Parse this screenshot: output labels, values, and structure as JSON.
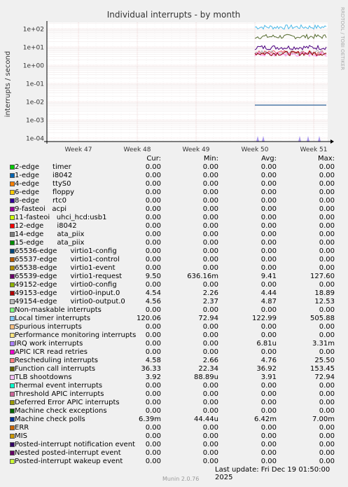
{
  "chart_data": {
    "type": "line",
    "title": "Individual interrupts - by month",
    "ylabel": "interrupts / second",
    "y_scale": "log",
    "ylim": [
      0.0001,
      200
    ],
    "y_ticks": [
      "1e+02",
      "1e+01",
      "1e+00",
      "1e-01",
      "1e-02",
      "1e-03",
      "1e-04"
    ],
    "x_ticks": [
      "Week 47",
      "Week 48",
      "Week 49",
      "Week 50",
      "Week 51"
    ],
    "side_label": "RRDTOOL / TOBI OETIKER",
    "grid": true,
    "series": [
      {
        "name": "Local timer interrupts",
        "color": "#4ab8e8",
        "value": 122.99
      },
      {
        "name": "Function call interrupts",
        "color": "#556b2f",
        "value": 36.92
      },
      {
        "name": "virtio1-request",
        "color": "#4b0082",
        "value": 9.41
      },
      {
        "name": "Rescheduling interrupts",
        "color": "#ee5566",
        "value": 4.76
      },
      {
        "name": "virtio0-output.0",
        "color": "#b0b0b0",
        "value": 4.87
      },
      {
        "name": "TLB shootdowns",
        "color": "#ff88ee",
        "value": 3.91
      },
      {
        "name": "virtio0-input.0",
        "color": "#8b0000",
        "value": 4.44
      },
      {
        "name": "Machine check polls",
        "color": "#00468b",
        "value": 0.00642
      }
    ]
  },
  "legend": {
    "headers": {
      "cur": "Cur:",
      "min": "Min:",
      "avg": "Avg:",
      "max": "Max:"
    },
    "rows": [
      {
        "label": "2-edge      timer",
        "color": "#00cc00",
        "cur": "0.00",
        "min": "0.00",
        "avg": "0.00",
        "max": "0.00"
      },
      {
        "label": "1-edge      i8042",
        "color": "#0066b3",
        "cur": "0.00",
        "min": "0.00",
        "avg": "0.00",
        "max": "0.00"
      },
      {
        "label": "4-edge      ttyS0",
        "color": "#ff8000",
        "cur": "0.00",
        "min": "0.00",
        "avg": "0.00",
        "max": "0.00"
      },
      {
        "label": "6-edge      floppy",
        "color": "#ffcc00",
        "cur": "0.00",
        "min": "0.00",
        "avg": "0.00",
        "max": "0.00"
      },
      {
        "label": "8-edge      rtc0",
        "color": "#330099",
        "cur": "0.00",
        "min": "0.00",
        "avg": "0.00",
        "max": "0.00"
      },
      {
        "label": "9-fasteoi   acpi",
        "color": "#990099",
        "cur": "0.00",
        "min": "0.00",
        "avg": "0.00",
        "max": "0.00"
      },
      {
        "label": "11-fasteoi   uhci_hcd:usb1",
        "color": "#ccff00",
        "cur": "0.00",
        "min": "0.00",
        "avg": "0.00",
        "max": "0.00"
      },
      {
        "label": "12-edge      i8042",
        "color": "#ff0000",
        "cur": "0.00",
        "min": "0.00",
        "avg": "0.00",
        "max": "0.00"
      },
      {
        "label": "14-edge      ata_piix",
        "color": "#808080",
        "cur": "0.00",
        "min": "0.00",
        "avg": "0.00",
        "max": "0.00"
      },
      {
        "label": "15-edge      ata_piix",
        "color": "#008f00",
        "cur": "0.00",
        "min": "0.00",
        "avg": "0.00",
        "max": "0.00"
      },
      {
        "label": "65536-edge      virtio1-config",
        "color": "#00487d",
        "cur": "0.00",
        "min": "0.00",
        "avg": "0.00",
        "max": "0.00"
      },
      {
        "label": "65537-edge      virtio1-control",
        "color": "#b35a00",
        "cur": "0.00",
        "min": "0.00",
        "avg": "0.00",
        "max": "0.00"
      },
      {
        "label": "65538-edge      virtio1-event",
        "color": "#b38f00",
        "cur": "0.00",
        "min": "0.00",
        "avg": "0.00",
        "max": "0.00"
      },
      {
        "label": "65539-edge      virtio1-request",
        "color": "#6b006b",
        "cur": "9.50",
        "min": "636.16m",
        "avg": "9.41",
        "max": "127.60"
      },
      {
        "label": "49152-edge      virtio0-config",
        "color": "#8fb300",
        "cur": "0.00",
        "min": "0.00",
        "avg": "0.00",
        "max": "0.00"
      },
      {
        "label": "49153-edge      virtio0-input.0",
        "color": "#b30000",
        "cur": "4.54",
        "min": "2.26",
        "avg": "4.44",
        "max": "18.89"
      },
      {
        "label": "49154-edge      virtio0-output.0",
        "color": "#bebebe",
        "cur": "4.56",
        "min": "2.37",
        "avg": "4.87",
        "max": "12.53"
      },
      {
        "label": "Non-maskable interrupts",
        "color": "#80ff80",
        "cur": "0.00",
        "min": "0.00",
        "avg": "0.00",
        "max": "0.00"
      },
      {
        "label": "Local timer interrupts",
        "color": "#80c9ff",
        "cur": "120.06",
        "min": "72.94",
        "avg": "122.99",
        "max": "505.88"
      },
      {
        "label": "Spurious interrupts",
        "color": "#ffc080",
        "cur": "0.00",
        "min": "0.00",
        "avg": "0.00",
        "max": "0.00"
      },
      {
        "label": "Performance monitoring interrupts",
        "color": "#ffe680",
        "cur": "0.00",
        "min": "0.00",
        "avg": "0.00",
        "max": "0.00"
      },
      {
        "label": "IRQ work interrupts",
        "color": "#aa80ff",
        "cur": "0.00",
        "min": "0.00",
        "avg": "6.81u",
        "max": "3.31m"
      },
      {
        "label": "APIC ICR read retries",
        "color": "#ee00cc",
        "cur": "0.00",
        "min": "0.00",
        "avg": "0.00",
        "max": "0.00"
      },
      {
        "label": "Rescheduling interrupts",
        "color": "#ff8080",
        "cur": "4.58",
        "min": "2.66",
        "avg": "4.76",
        "max": "25.50"
      },
      {
        "label": "Function call interrupts",
        "color": "#666600",
        "cur": "36.33",
        "min": "22.34",
        "avg": "36.92",
        "max": "153.45"
      },
      {
        "label": "TLB shootdowns",
        "color": "#ffbfff",
        "cur": "3.92",
        "min": "88.89u",
        "avg": "3.91",
        "max": "72.94"
      },
      {
        "label": "Thermal event interrupts",
        "color": "#00ffcc",
        "cur": "0.00",
        "min": "0.00",
        "avg": "0.00",
        "max": "0.00"
      },
      {
        "label": "Threshold APIC interrupts",
        "color": "#cc6699",
        "cur": "0.00",
        "min": "0.00",
        "avg": "0.00",
        "max": "0.00"
      },
      {
        "label": "Deferred Error APIC interrupts",
        "color": "#999900",
        "cur": "0.00",
        "min": "0.00",
        "avg": "0.00",
        "max": "0.00"
      },
      {
        "label": "Machine check exceptions",
        "color": "#006600",
        "cur": "0.00",
        "min": "0.00",
        "avg": "0.00",
        "max": "0.00"
      },
      {
        "label": "Machine check polls",
        "color": "#003399",
        "cur": "6.39m",
        "min": "44.44u",
        "avg": "6.42m",
        "max": "7.00m"
      },
      {
        "label": "ERR",
        "color": "#cc6600",
        "cur": "0.00",
        "min": "0.00",
        "avg": "0.00",
        "max": "0.00"
      },
      {
        "label": "MIS",
        "color": "#cc9900",
        "cur": "0.00",
        "min": "0.00",
        "avg": "0.00",
        "max": "0.00"
      },
      {
        "label": "Posted-interrupt notification event",
        "color": "#330066",
        "cur": "0.00",
        "min": "0.00",
        "avg": "0.00",
        "max": "0.00"
      },
      {
        "label": "Nested posted-interrupt event",
        "color": "#660066",
        "cur": "0.00",
        "min": "0.00",
        "avg": "0.00",
        "max": "0.00"
      },
      {
        "label": "Posted-interrupt wakeup event",
        "color": "#ccff33",
        "cur": "0.00",
        "min": "0.00",
        "avg": "0.00",
        "max": "0.00"
      }
    ]
  },
  "footer": {
    "last_update": "Last update: Fri Dec 19 01:50:00 2025",
    "version": "Munin 2.0.76"
  }
}
